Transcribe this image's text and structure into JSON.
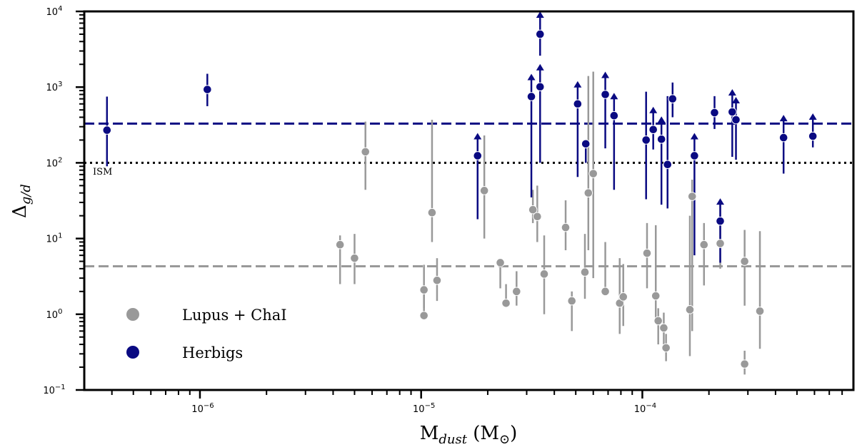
{
  "chart_data": {
    "type": "scatter",
    "x_scale": "log",
    "y_scale": "log",
    "xlim": [
      3e-07,
      0.0009
    ],
    "ylim": [
      0.1,
      10000
    ],
    "xlabel": "M_dust (M_⊙)",
    "ylabel": "Δ_g/d",
    "x_ticks": [
      {
        "value": 1e-06,
        "label": "10^-6"
      },
      {
        "value": 1e-05,
        "label": "10^-5"
      },
      {
        "value": 0.0001,
        "label": "10^-4"
      }
    ],
    "y_ticks": [
      {
        "value": 0.1,
        "label": "10^-1"
      },
      {
        "value": 1,
        "label": "10^0"
      },
      {
        "value": 10,
        "label": "10^1"
      },
      {
        "value": 100,
        "label": "10^2"
      },
      {
        "value": 1000,
        "label": "10^3"
      },
      {
        "value": 10000,
        "label": "10^4"
      }
    ],
    "hlines": [
      {
        "y": 330,
        "style": "dashed",
        "color": "#0a0a82"
      },
      {
        "y": 100,
        "style": "dotted",
        "color": "#000000",
        "label": "ISM"
      },
      {
        "y": 4.3,
        "style": "dashed",
        "color": "#999999"
      }
    ],
    "legend": {
      "position": "bottom-left",
      "entries": [
        {
          "label": "Lupus + ChaI",
          "color": "#999999"
        },
        {
          "label": "Herbigs",
          "color": "#0a0a82"
        }
      ]
    },
    "series": [
      {
        "name": "Lupus + ChaI",
        "color": "#999999",
        "points": [
          {
            "x": 4.3e-06,
            "y": 8.3,
            "lo": 2.5,
            "hi": 11
          },
          {
            "x": 5e-06,
            "y": 5.5,
            "lo": 2.5,
            "hi": 11.5
          },
          {
            "x": 5.6e-06,
            "y": 140,
            "lo": 44,
            "hi": 350
          },
          {
            "x": 1.03e-05,
            "y": 2.1,
            "lo": 1.2,
            "hi": 4.5
          },
          {
            "x": 1.03e-05,
            "y": 0.96,
            "lo": 0.96,
            "hi": 1.8
          },
          {
            "x": 1.12e-05,
            "y": 22,
            "lo": 9,
            "hi": 370
          },
          {
            "x": 1.18e-05,
            "y": 2.8,
            "lo": 1.5,
            "hi": 5.5
          },
          {
            "x": 1.93e-05,
            "y": 43,
            "lo": 10,
            "hi": 230
          },
          {
            "x": 2.28e-05,
            "y": 4.8,
            "lo": 2.2,
            "hi": 4.8
          },
          {
            "x": 2.42e-05,
            "y": 1.4,
            "lo": 1.4,
            "hi": 2.5
          },
          {
            "x": 2.7e-05,
            "y": 2.0,
            "lo": 1.3,
            "hi": 3.7
          },
          {
            "x": 3.2e-05,
            "y": 24,
            "lo": 16,
            "hi": 44
          },
          {
            "x": 3.35e-05,
            "y": 19.5,
            "lo": 9,
            "hi": 50
          },
          {
            "x": 3.6e-05,
            "y": 3.4,
            "lo": 1.0,
            "hi": 11
          },
          {
            "x": 4.5e-05,
            "y": 14,
            "lo": 7,
            "hi": 32
          },
          {
            "x": 4.8e-05,
            "y": 1.5,
            "lo": 0.6,
            "hi": 2.0
          },
          {
            "x": 5.5e-05,
            "y": 3.6,
            "lo": 1.6,
            "hi": 11.5
          },
          {
            "x": 5.7e-05,
            "y": 40,
            "lo": 7,
            "hi": 1400
          },
          {
            "x": 6e-05,
            "y": 72,
            "lo": 3,
            "hi": 1600
          },
          {
            "x": 6.8e-05,
            "y": 2.0,
            "lo": 2.0,
            "hi": 9
          },
          {
            "x": 7.9e-05,
            "y": 1.4,
            "lo": 0.55,
            "hi": 5.5
          },
          {
            "x": 8.2e-05,
            "y": 1.7,
            "lo": 0.7,
            "hi": 4.6
          },
          {
            "x": 0.000105,
            "y": 6.4,
            "lo": 2.2,
            "hi": 16
          },
          {
            "x": 0.000115,
            "y": 1.75,
            "lo": 0.8,
            "hi": 15
          },
          {
            "x": 0.000118,
            "y": 0.82,
            "lo": 0.4,
            "hi": 1.2
          },
          {
            "x": 0.000125,
            "y": 0.66,
            "lo": 0.4,
            "hi": 1.05
          },
          {
            "x": 0.000128,
            "y": 0.36,
            "lo": 0.24,
            "hi": 0.55
          },
          {
            "x": 0.000164,
            "y": 1.15,
            "lo": 0.28,
            "hi": 20
          },
          {
            "x": 0.000168,
            "y": 36,
            "lo": 0.6,
            "hi": 60
          },
          {
            "x": 0.00019,
            "y": 8.3,
            "lo": 2.4,
            "hi": 16
          },
          {
            "x": 0.000225,
            "y": 8.6,
            "lo": 4,
            "hi": 30
          },
          {
            "x": 0.00029,
            "y": 5.0,
            "lo": 1.3,
            "hi": 13
          },
          {
            "x": 0.00029,
            "y": 0.22,
            "lo": 0.16,
            "hi": 0.33
          },
          {
            "x": 0.00034,
            "y": 1.1,
            "lo": 0.35,
            "hi": 12.5
          }
        ]
      },
      {
        "name": "Herbigs",
        "color": "#0a0a82",
        "points": [
          {
            "x": 3.8e-07,
            "y": 270,
            "lo": 90,
            "hi": 750,
            "arrow": false
          },
          {
            "x": 1.08e-06,
            "y": 930,
            "lo": 560,
            "hi": 1500,
            "arrow": false
          },
          {
            "x": 1.8e-05,
            "y": 124,
            "lo": 18,
            "hi": 124,
            "arrow": true
          },
          {
            "x": 3.15e-05,
            "y": 750,
            "lo": 35,
            "hi": 750,
            "arrow": true
          },
          {
            "x": 3.45e-05,
            "y": 5000,
            "lo": 2600,
            "hi": 5000,
            "arrow": true
          },
          {
            "x": 3.45e-05,
            "y": 1010,
            "lo": 100,
            "hi": 1010,
            "arrow": true
          },
          {
            "x": 5.1e-05,
            "y": 600,
            "lo": 65,
            "hi": 600,
            "arrow": true
          },
          {
            "x": 5.55e-05,
            "y": 178,
            "lo": 100,
            "hi": 200,
            "arrow": false
          },
          {
            "x": 6.8e-05,
            "y": 800,
            "lo": 155,
            "hi": 800,
            "arrow": true
          },
          {
            "x": 7.45e-05,
            "y": 420,
            "lo": 44,
            "hi": 420,
            "arrow": true
          },
          {
            "x": 0.000104,
            "y": 200,
            "lo": 33,
            "hi": 870,
            "arrow": false
          },
          {
            "x": 0.000112,
            "y": 275,
            "lo": 150,
            "hi": 275,
            "arrow": true
          },
          {
            "x": 0.000122,
            "y": 205,
            "lo": 28,
            "hi": 205,
            "arrow": true
          },
          {
            "x": 0.00013,
            "y": 95,
            "lo": 25,
            "hi": 760,
            "arrow": false
          },
          {
            "x": 0.000137,
            "y": 700,
            "lo": 400,
            "hi": 1150,
            "arrow": false
          },
          {
            "x": 0.000172,
            "y": 124,
            "lo": 6,
            "hi": 124,
            "arrow": true
          },
          {
            "x": 0.000212,
            "y": 460,
            "lo": 280,
            "hi": 760,
            "arrow": false
          },
          {
            "x": 0.000225,
            "y": 17,
            "lo": 4.8,
            "hi": 17,
            "arrow": true
          },
          {
            "x": 0.000255,
            "y": 470,
            "lo": 120,
            "hi": 470,
            "arrow": true
          },
          {
            "x": 0.000265,
            "y": 370,
            "lo": 110,
            "hi": 370,
            "arrow": true
          },
          {
            "x": 0.000435,
            "y": 215,
            "lo": 72,
            "hi": 215,
            "arrow": true
          },
          {
            "x": 0.00059,
            "y": 225,
            "lo": 160,
            "hi": 225,
            "arrow": true
          }
        ]
      }
    ]
  }
}
